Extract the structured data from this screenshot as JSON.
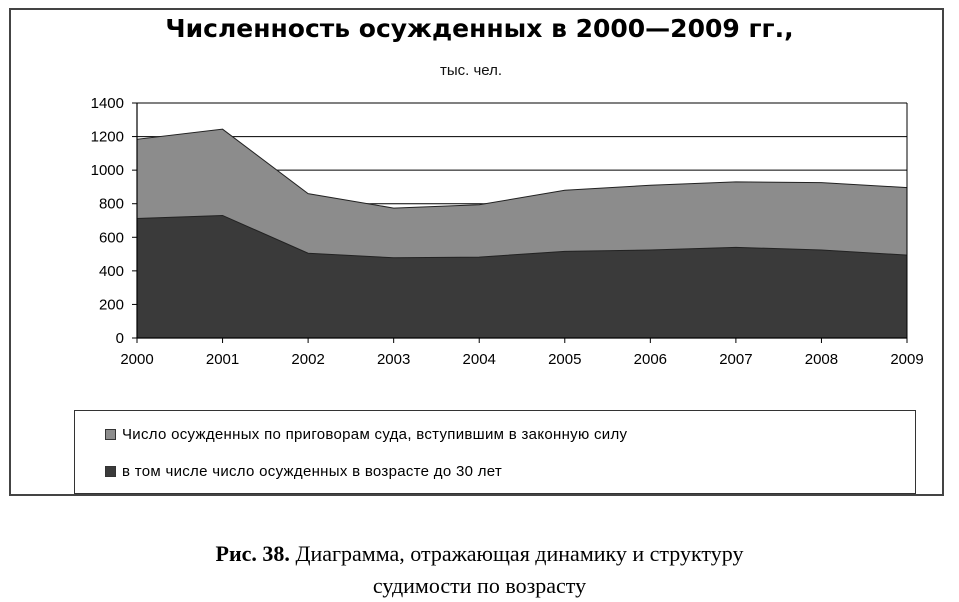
{
  "chart_data": {
    "type": "area",
    "title": "Численность осужденных в 2000—2009 гг.,",
    "subtitle": "тыс. чел.",
    "x": [
      2000,
      2001,
      2002,
      2003,
      2004,
      2005,
      2006,
      2007,
      2008,
      2009
    ],
    "x_tick_labels": [
      "2000",
      "2001",
      "2002",
      "2003",
      "2004",
      "2005",
      "2006",
      "2007",
      "2008",
      "2009"
    ],
    "y_ticks": [
      "0",
      "200",
      "400",
      "600",
      "800",
      "1000",
      "1200",
      "1400"
    ],
    "ylim": [
      0,
      1400
    ],
    "grid": "horizontal",
    "legend_position": "bottom",
    "series": [
      {
        "name": "Число осужденных по приговорам суда, вступившим в законную силу",
        "values": [
          1184,
          1244,
          860,
          774,
          794,
          880,
          910,
          930,
          926,
          896
        ],
        "color": "#8c8c8c"
      },
      {
        "name": "в том числе число осужденных в возрасте до 30 лет",
        "values": [
          712,
          730,
          505,
          478,
          482,
          516,
          524,
          540,
          524,
          494
        ],
        "color": "#3a3a3a"
      }
    ]
  },
  "caption": {
    "label": "Рис. 38.",
    "text_line1": " Диаграмма, отражающая динамику и структуру",
    "text_line2": "судимости по возрасту"
  }
}
